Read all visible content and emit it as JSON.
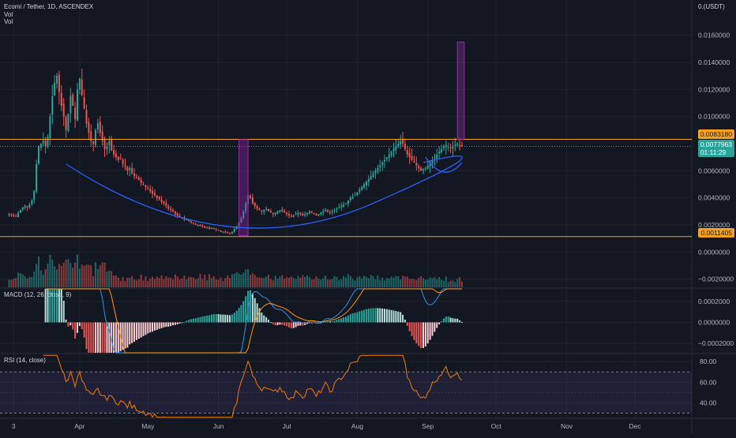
{
  "header": {
    "symbol": "Ecomi / Tether, 1D, ASCENDEX",
    "vol1": "Vol",
    "vol2": "Vol",
    "currency": "0.(USDT)"
  },
  "colors": {
    "bg": "#131722",
    "up": "#26a69a",
    "down": "#ef5350",
    "grid": "#1e222d",
    "level": "#f7a21b",
    "box": "#9c27b0",
    "curve": "#2962ff",
    "macd": "#2196f3",
    "signal": "#ff9800",
    "rsi": "#f57c00",
    "rsi_band": "#7e57c2"
  },
  "chart_data": [
    {
      "type": "candlestick",
      "pane": "price",
      "title": "Ecomi / Tether, 1D, ASCENDEX",
      "y_ticks": [
        "0.0160000",
        "0.0140000",
        "0.0120000",
        "0.0100000",
        "0.0060000",
        "0.0040000",
        "0.0020000",
        "0.0000000",
        "−0.0020000"
      ],
      "y_tick_values": [
        0.016,
        0.014,
        0.012,
        0.01,
        0.006,
        0.004,
        0.002,
        0.0,
        -0.002
      ],
      "ylim": [
        -0.0026,
        0.0186
      ],
      "x_ticks": [
        "3",
        "Apr",
        "May",
        "Jun",
        "Jul",
        "Aug",
        "Sep",
        "Oct",
        "Nov",
        "Dec"
      ],
      "x_tick_days": [
        2,
        31,
        61,
        92,
        122,
        153,
        184,
        214,
        245,
        275
      ],
      "xlim": [
        -4,
        300
      ],
      "horizontal_levels": [
        {
          "value": 0.008318,
          "label": "0.0083180"
        },
        {
          "value": 0.0011405,
          "label": "0.0011405"
        }
      ],
      "last_price": {
        "value": 0.0077963,
        "label": "0.0077963",
        "countdown": "01:11:29"
      },
      "closes": [
        0.0028,
        0.0027,
        0.00265,
        0.0026,
        0.0029,
        0.0031,
        0.0033,
        0.0034,
        0.0033,
        0.0035,
        0.0038,
        0.0045,
        0.0065,
        0.0078,
        0.008,
        0.0082,
        0.0078,
        0.0085,
        0.01,
        0.0115,
        0.0125,
        0.013,
        0.0118,
        0.0108,
        0.01,
        0.009,
        0.0102,
        0.0115,
        0.0108,
        0.0098,
        0.012,
        0.0128,
        0.0116,
        0.0106,
        0.0095,
        0.0088,
        0.0082,
        0.008,
        0.009,
        0.0095,
        0.0088,
        0.0082,
        0.0076,
        0.0078,
        0.0082,
        0.0075,
        0.0072,
        0.007,
        0.0068,
        0.0069,
        0.0065,
        0.0063,
        0.006,
        0.0062,
        0.0058,
        0.0056,
        0.0055,
        0.0053,
        0.0051,
        0.005,
        0.0048,
        0.0047,
        0.0045,
        0.0043,
        0.0042,
        0.004,
        0.0039,
        0.0037,
        0.0036,
        0.0034,
        0.0032,
        0.0031,
        0.003,
        0.0028,
        0.0027,
        0.0026,
        0.0025,
        0.0024,
        0.0024,
        0.0023,
        0.0022,
        0.0021,
        0.002,
        0.002,
        0.0019,
        0.0019,
        0.0018,
        0.0018,
        0.0017,
        0.0018,
        0.0017,
        0.00165,
        0.0016,
        0.0015,
        0.0015,
        0.00145,
        0.0014,
        0.00135,
        0.0015,
        0.0017,
        0.0019,
        0.0022,
        0.0025,
        0.003,
        0.0036,
        0.0042,
        0.004,
        0.0036,
        0.0034,
        0.0032,
        0.0031,
        0.003,
        0.0031,
        0.0032,
        0.003,
        0.0029,
        0.0028,
        0.0029,
        0.003,
        0.0031,
        0.003,
        0.0029,
        0.0028,
        0.0027,
        0.0026,
        0.0027,
        0.0028,
        0.0029,
        0.0028,
        0.0027,
        0.0028,
        0.0029,
        0.003,
        0.0029,
        0.0028,
        0.0027,
        0.0028,
        0.0029,
        0.003,
        0.0031,
        0.003,
        0.0029,
        0.003,
        0.0031,
        0.0032,
        0.0033,
        0.0034,
        0.0035,
        0.0036,
        0.0038,
        0.004,
        0.0041,
        0.0042,
        0.0044,
        0.0046,
        0.0048,
        0.005,
        0.0052,
        0.0054,
        0.0056,
        0.0058,
        0.006,
        0.0062,
        0.0064,
        0.0066,
        0.0068,
        0.007,
        0.0072,
        0.0074,
        0.0076,
        0.0078,
        0.008,
        0.0082,
        0.008,
        0.0076,
        0.0072,
        0.007,
        0.0068,
        0.0066,
        0.0064,
        0.0062,
        0.006,
        0.0061,
        0.0062,
        0.0064,
        0.0066,
        0.0068,
        0.007,
        0.0072,
        0.0074,
        0.0076,
        0.0078,
        0.0079,
        0.0078,
        0.0077,
        0.0078,
        0.0079,
        0.008,
        0.0078,
        0.0078
      ],
      "series": [
        {
          "name": "Vol",
          "kind": "volume"
        }
      ]
    },
    {
      "type": "bar",
      "pane": "macd",
      "title": "MACD (12, 26, close, 9)",
      "y_ticks": [
        "0.0002000",
        "0.0000000",
        "−0.0002000"
      ],
      "y_tick_values": [
        0.0002,
        0.0,
        -0.0002
      ],
      "ylim": [
        -0.00029,
        0.00032
      ]
    },
    {
      "type": "line",
      "pane": "rsi",
      "title": "RSI (14, close)",
      "y_ticks": [
        "80.00",
        "60.00",
        "40.00"
      ],
      "y_tick_values": [
        80,
        60,
        40
      ],
      "ylim": [
        25,
        87
      ],
      "band": [
        30,
        70
      ]
    }
  ]
}
